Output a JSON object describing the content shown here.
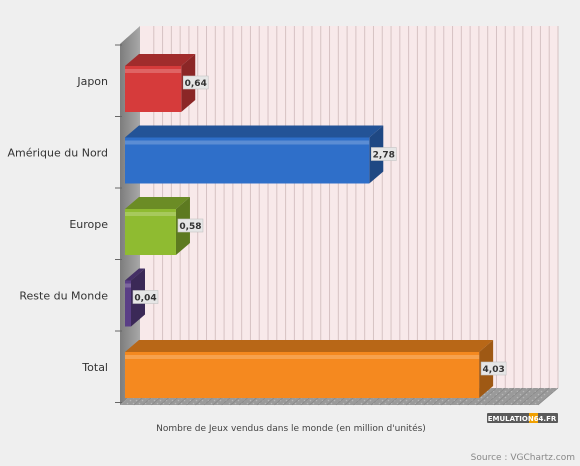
{
  "chart_data": {
    "type": "bar",
    "orientation": "horizontal",
    "style": "3d",
    "categories": [
      "Japon",
      "Amérique du Nord",
      "Europe",
      "Reste du Monde",
      "Total"
    ],
    "values": [
      0.64,
      2.78,
      0.58,
      0.04,
      4.03
    ],
    "value_labels": [
      "0,64",
      "2,78",
      "0,58",
      "0,04",
      "4,03"
    ],
    "colors": [
      "#d63b3b",
      "#2f6fc9",
      "#8fbb31",
      "#5a3f86",
      "#f5891f"
    ],
    "title": "",
    "xlabel": "Nombre de Jeux vendus dans le monde (en million d'unités)",
    "ylabel": "",
    "xlim": [
      0,
      4.7
    ],
    "grid": true,
    "legend": "none",
    "plot_background": "#f8e9ea",
    "grid_color": "#d6c2c3"
  },
  "watermark": "EMULATION64.FR",
  "source": "Source : VGChartz.com"
}
